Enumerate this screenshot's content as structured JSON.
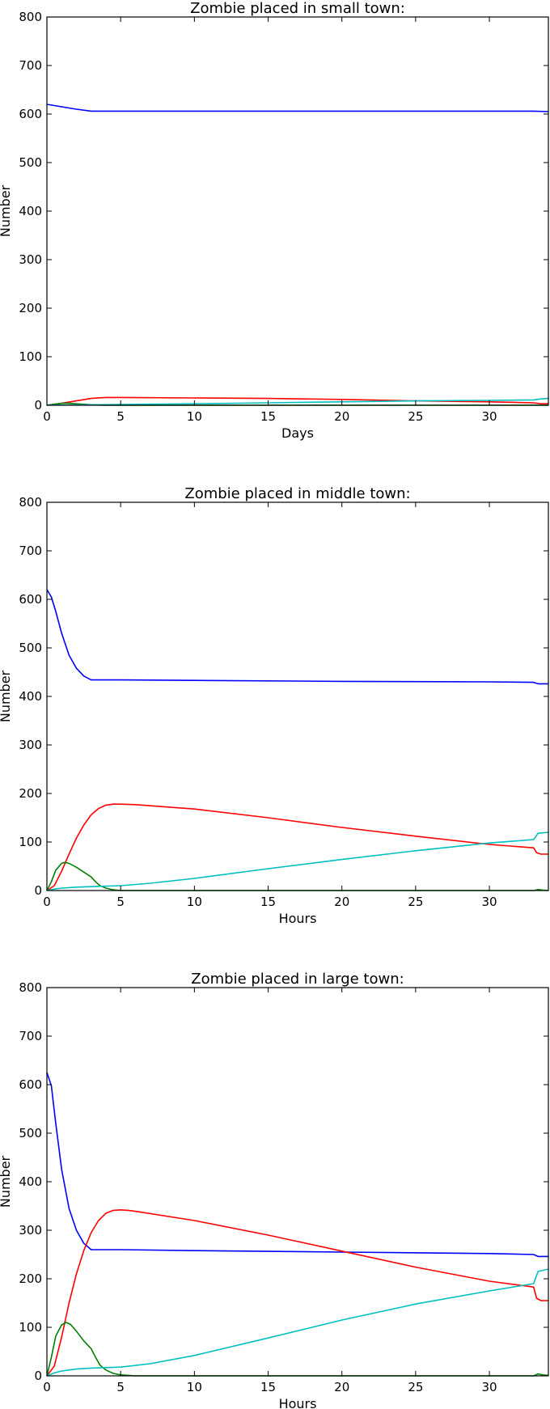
{
  "colors": {
    "humans": "#0000ff",
    "zombies": "#ff0000",
    "infected": "#008000",
    "dead": "#00bfbf",
    "axes": "#000000",
    "background": "#ffffff"
  },
  "chart_data": [
    {
      "type": "line",
      "title": "Zombie placed in small town:",
      "xlabel": "Days",
      "ylabel": "Number",
      "xlim": [
        0,
        34
      ],
      "ylim": [
        0,
        800
      ],
      "xticks": [
        0,
        5,
        10,
        15,
        20,
        25,
        30
      ],
      "yticks": [
        0,
        100,
        200,
        300,
        400,
        500,
        600,
        700,
        800
      ],
      "grid": false,
      "series": [
        {
          "color": "#0000ff",
          "x": [
            0,
            1,
            2,
            3,
            5,
            10,
            20,
            30,
            33,
            34
          ],
          "y": [
            620,
            615,
            610,
            606,
            606,
            606,
            606,
            606,
            606,
            605
          ]
        },
        {
          "color": "#ff0000",
          "x": [
            0,
            1,
            2,
            3,
            4,
            5,
            10,
            15,
            20,
            25,
            30,
            33,
            33.5,
            34
          ],
          "y": [
            0,
            4,
            9,
            14,
            16,
            16,
            15,
            14,
            12,
            9,
            7,
            5,
            3,
            3
          ]
        },
        {
          "color": "#008000",
          "x": [
            0,
            0.5,
            1,
            1.5,
            2,
            2.5,
            3,
            3.5,
            4,
            5,
            34
          ],
          "y": [
            0,
            2,
            4,
            4,
            3,
            2,
            1,
            0.5,
            0,
            0,
            0
          ]
        },
        {
          "color": "#00bfbf",
          "x": [
            0,
            1,
            3,
            5,
            10,
            15,
            20,
            25,
            30,
            33,
            33.5,
            34
          ],
          "y": [
            0,
            0.5,
            1,
            1.5,
            3,
            5,
            7,
            9,
            10,
            11,
            13,
            14
          ]
        }
      ]
    },
    {
      "type": "line",
      "title": "Zombie placed in middle town:",
      "xlabel": "Hours",
      "ylabel": "Number",
      "xlim": [
        0,
        34
      ],
      "ylim": [
        0,
        800
      ],
      "xticks": [
        0,
        5,
        10,
        15,
        20,
        25,
        30
      ],
      "yticks": [
        0,
        100,
        200,
        300,
        400,
        500,
        600,
        700,
        800
      ],
      "grid": false,
      "series": [
        {
          "color": "#0000ff",
          "x": [
            0,
            0.3,
            0.6,
            1,
            1.5,
            2,
            2.5,
            3,
            5,
            10,
            20,
            30,
            33,
            33.3,
            34
          ],
          "y": [
            620,
            605,
            575,
            530,
            485,
            458,
            442,
            434,
            434,
            433,
            431,
            430,
            429,
            426,
            426
          ]
        },
        {
          "color": "#ff0000",
          "x": [
            0,
            0.5,
            1,
            1.5,
            2,
            2.5,
            3,
            3.5,
            4,
            4.5,
            5,
            6,
            10,
            15,
            20,
            25,
            30,
            33,
            33.2,
            33.5,
            34
          ],
          "y": [
            0,
            10,
            40,
            75,
            108,
            135,
            156,
            169,
            176,
            178,
            178,
            177,
            168,
            150,
            130,
            112,
            95,
            88,
            78,
            75,
            75
          ]
        },
        {
          "color": "#008000",
          "x": [
            0,
            0.3,
            0.6,
            1,
            1.2,
            1.5,
            2,
            2.5,
            3,
            3.3,
            3.6,
            4,
            4.5,
            5,
            6,
            10,
            33,
            33.3,
            33.6,
            34
          ],
          "y": [
            0,
            18,
            42,
            56,
            58,
            56,
            48,
            38,
            28,
            18,
            10,
            5,
            1.5,
            0,
            0,
            0,
            0,
            2,
            1,
            0
          ]
        },
        {
          "color": "#00bfbf",
          "x": [
            0,
            0.5,
            1,
            2,
            3,
            5,
            7,
            10,
            15,
            20,
            25,
            30,
            33,
            33.3,
            34
          ],
          "y": [
            0,
            3,
            5,
            7,
            8,
            10,
            15,
            25,
            45,
            64,
            82,
            98,
            105,
            118,
            120
          ]
        }
      ]
    },
    {
      "type": "line",
      "title": "Zombie placed in large town:",
      "xlabel": "Hours",
      "ylabel": "Number",
      "xlim": [
        0,
        34
      ],
      "ylim": [
        0,
        800
      ],
      "xticks": [
        0,
        5,
        10,
        15,
        20,
        25,
        30
      ],
      "yticks": [
        0,
        100,
        200,
        300,
        400,
        500,
        600,
        700,
        800
      ],
      "grid": false,
      "series": [
        {
          "color": "#0000ff",
          "x": [
            0,
            0.3,
            0.6,
            1,
            1.5,
            2,
            2.5,
            3,
            5,
            10,
            20,
            30,
            33,
            33.3,
            34
          ],
          "y": [
            625,
            598,
            520,
            425,
            345,
            300,
            273,
            260,
            260,
            258,
            255,
            252,
            250,
            246,
            246
          ]
        },
        {
          "color": "#ff0000",
          "x": [
            0,
            0.5,
            1,
            1.5,
            2,
            2.5,
            3,
            3.5,
            4,
            4.5,
            5,
            5.5,
            6,
            10,
            15,
            20,
            25,
            30,
            33,
            33.2,
            33.5,
            34
          ],
          "y": [
            0,
            20,
            80,
            150,
            210,
            258,
            295,
            320,
            335,
            341,
            342,
            341,
            339,
            320,
            290,
            257,
            224,
            195,
            183,
            160,
            155,
            155
          ]
        },
        {
          "color": "#008000",
          "x": [
            0,
            0.3,
            0.6,
            1,
            1.3,
            1.6,
            2,
            2.5,
            3,
            3.3,
            3.6,
            4,
            4.5,
            5,
            6,
            10,
            33,
            33.3,
            33.6,
            34
          ],
          "y": [
            0,
            38,
            82,
            105,
            110,
            106,
            92,
            72,
            56,
            38,
            22,
            12,
            5,
            2,
            0,
            0,
            0,
            4,
            2,
            1
          ]
        },
        {
          "color": "#00bfbf",
          "x": [
            0,
            0.5,
            1,
            2,
            3,
            4,
            5,
            7,
            10,
            15,
            20,
            25,
            30,
            33,
            33.3,
            34
          ],
          "y": [
            0,
            6,
            10,
            14,
            16,
            17,
            18,
            25,
            42,
            78,
            115,
            148,
            175,
            190,
            215,
            220
          ]
        }
      ]
    }
  ]
}
